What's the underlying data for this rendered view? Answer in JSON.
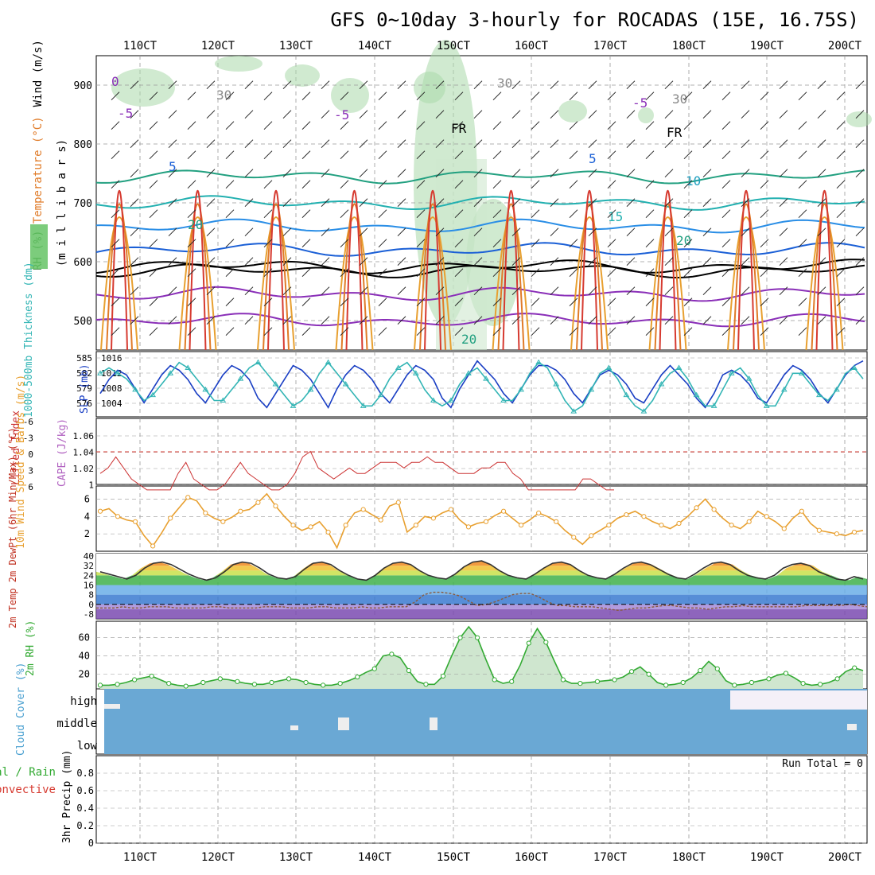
{
  "title": "GFS 0~10day 3-hourly for ROCADAS (15E, 16.75S)",
  "chart_data": {
    "type": "line",
    "x_ticks": [
      "110CT",
      "120CT",
      "130CT",
      "140CT",
      "150CT",
      "160CT",
      "170CT",
      "180CT",
      "190CT",
      "200CT"
    ],
    "panels": [
      {
        "id": "upper-air",
        "ylabel_parts": [
          "RH (%)",
          "Temperature (°C)",
          "Wind (m/s)"
        ],
        "ylabel2": "(m i l l i b a r s)",
        "ylim": [
          950,
          450
        ],
        "yticks": [
          500,
          600,
          700,
          800,
          900
        ],
        "contour_labels": [
          "0",
          "-5",
          "-5",
          "-5",
          "FR",
          "FR",
          "5",
          "5",
          "10",
          "15",
          "20",
          "20",
          "20",
          "30",
          "30",
          "30"
        ]
      },
      {
        "id": "slp-thickness",
        "ylabel_left": "1000-500mb Thickness (dm)",
        "ylabel_right": "SLP (mb)",
        "yticks_left": [
          585,
          582,
          579,
          576
        ],
        "yticks_right": [
          1016,
          1012,
          1008,
          1004
        ],
        "series": [
          {
            "name": "SLP (mb)",
            "color": "#1a3fc4",
            "values": [
              1008,
              1011,
              1013,
              1012,
              1009,
              1006,
              1009,
              1012,
              1014,
              1013,
              1011,
              1008,
              1006,
              1009,
              1012,
              1014,
              1013,
              1011,
              1007,
              1005,
              1008,
              1011,
              1014,
              1013,
              1011,
              1008,
              1005,
              1009,
              1012,
              1014,
              1013,
              1011,
              1008,
              1006,
              1009,
              1012,
              1014,
              1013,
              1011,
              1007,
              1005,
              1009,
              1012,
              1015,
              1013,
              1011,
              1008,
              1006,
              1009,
              1012,
              1014,
              1014,
              1013,
              1011,
              1008,
              1006,
              1009,
              1012,
              1013,
              1012,
              1010,
              1007,
              1006,
              1009,
              1012,
              1014,
              1012,
              1010,
              1007,
              1005,
              1008,
              1012,
              1013,
              1012,
              1010,
              1007,
              1006,
              1009,
              1012,
              1014,
              1013,
              1011,
              1008,
              1006,
              1009,
              1012,
              1014,
              1015
            ]
          },
          {
            "name": "1000-500mb Thickness (dm)",
            "color": "#33b5b5",
            "values": [
              582,
              583,
              582,
              581,
              579,
              577,
              578,
              580,
              582,
              584,
              583,
              581,
              579,
              577,
              577,
              579,
              581,
              583,
              584,
              582,
              580,
              578,
              576,
              577,
              579,
              582,
              584,
              582,
              580,
              578,
              576,
              576,
              578,
              581,
              583,
              584,
              582,
              579,
              577,
              576,
              577,
              580,
              582,
              583,
              581,
              579,
              577,
              577,
              579,
              582,
              584,
              583,
              580,
              577,
              575,
              576,
              579,
              582,
              583,
              581,
              578,
              576,
              575,
              577,
              580,
              582,
              583,
              581,
              578,
              576,
              576,
              579,
              582,
              583,
              581,
              578,
              576,
              576,
              579,
              582,
              582,
              580,
              578,
              577,
              579,
              582,
              583,
              581
            ]
          }
        ]
      },
      {
        "id": "lifted-cape",
        "ylabel_left": "Lifted Index",
        "ylabel_right": "CAPE (J/kg)",
        "yticks_left": [
          "-6",
          "-3",
          "0",
          "3",
          "6"
        ],
        "yticks_right": [
          "1.06",
          "1.04",
          "1.02",
          "1"
        ],
        "series": [
          {
            "name": "Lifted Index",
            "color": "#cc3333",
            "values": [
              4,
              3,
              1,
              3,
              5,
              6,
              7,
              7,
              7,
              7,
              4,
              2,
              5,
              6,
              7,
              7,
              6,
              4,
              2,
              4,
              5,
              6,
              7,
              7,
              6,
              4,
              1,
              0,
              3,
              4,
              5,
              4,
              3,
              4,
              4,
              3,
              2,
              2,
              2,
              3,
              2,
              2,
              1,
              2,
              2,
              3,
              4,
              4,
              4,
              3,
              3,
              2,
              2,
              4,
              5,
              7,
              7,
              7,
              7,
              7,
              7,
              7,
              5,
              5,
              6,
              7,
              7
            ]
          }
        ]
      },
      {
        "id": "wind10m",
        "ylabel": "10m Wind Speed & Barbs (m/s)",
        "yticks": [
          2,
          4,
          6
        ],
        "series": [
          {
            "name": "10m Wind Speed",
            "color": "#e8a030",
            "values": [
              4.6,
              4.9,
              4.0,
              3.6,
              3.4,
              1.8,
              0.6,
              2.1,
              3.8,
              5.0,
              6.2,
              5.8,
              4.4,
              3.8,
              3.4,
              3.9,
              4.6,
              4.8,
              5.6,
              6.6,
              5.2,
              4.0,
              3.0,
              2.4,
              2.8,
              3.4,
              2.2,
              0.4,
              3.0,
              4.4,
              4.8,
              4.2,
              3.6,
              5.2,
              5.6,
              2.2,
              3.0,
              4.0,
              3.8,
              4.4,
              4.8,
              3.6,
              2.8,
              3.2,
              3.4,
              4.1,
              4.6,
              3.8,
              3.0,
              3.6,
              4.4,
              4.0,
              3.4,
              2.4,
              1.6,
              0.8,
              1.8,
              2.4,
              3.0,
              3.8,
              4.2,
              4.6,
              4.0,
              3.4,
              3.0,
              2.6,
              3.2,
              4.0,
              5.0,
              6.0,
              4.8,
              3.8,
              3.0,
              2.6,
              3.4,
              4.6,
              4.0,
              3.4,
              2.6,
              3.8,
              4.6,
              3.2,
              2.4,
              2.2,
              2.0,
              1.8,
              2.2,
              2.4
            ]
          }
        ]
      },
      {
        "id": "temp2m",
        "ylabel": "2m Temp 2m DewPt (6hr Min/Max) (°C)",
        "yticks": [
          "40",
          "32",
          "24",
          "16",
          "8",
          "0",
          "-8"
        ],
        "series": [
          {
            "name": "2m Temp",
            "color": "#333333",
            "values": [
              27,
              25,
              23,
              21,
              24,
              30,
              34,
              35,
              33,
              29,
              25,
              22,
              20,
              22,
              27,
              33,
              35,
              34,
              30,
              25,
              22,
              21,
              23,
              29,
              34,
              35,
              33,
              28,
              24,
              21,
              20,
              24,
              30,
              34,
              35,
              33,
              28,
              24,
              22,
              21,
              25,
              31,
              35,
              36,
              33,
              28,
              24,
              22,
              21,
              25,
              30,
              34,
              35,
              33,
              28,
              24,
              22,
              21,
              25,
              30,
              34,
              35,
              33,
              29,
              25,
              22,
              21,
              25,
              30,
              34,
              35,
              33,
              28,
              24,
              22,
              21,
              24,
              30,
              33,
              34,
              32,
              27,
              24,
              21,
              20,
              23,
              21
            ]
          },
          {
            "name": "2m DewPt",
            "color": "#8a5a3c",
            "values": [
              -3,
              -3,
              -3,
              -2,
              -3,
              -3,
              -2,
              -2,
              -2,
              -3,
              -3,
              -3,
              -3,
              -2,
              -2,
              -3,
              -3,
              -3,
              -3,
              -2,
              -2,
              -2,
              -3,
              -3,
              -3,
              -2,
              -2,
              -3,
              -3,
              -3,
              -2,
              -3,
              -3,
              -2,
              -2,
              -2,
              2,
              8,
              10,
              10,
              9,
              7,
              3,
              -1,
              0,
              2,
              5,
              8,
              9,
              9,
              6,
              2,
              -1,
              -1,
              -2,
              -2,
              -2,
              -3,
              -4,
              -5,
              -4,
              -3,
              -3,
              -2,
              -1,
              -1,
              -2,
              -3,
              -3,
              -4,
              -3,
              -2,
              -2,
              -1,
              -2,
              -2,
              -2,
              -2,
              -2,
              -2,
              -1,
              -1,
              -1,
              -1,
              -1,
              0,
              -1,
              -2
            ]
          }
        ]
      },
      {
        "id": "rh2m",
        "ylabel": "2m RH (%)",
        "yticks": [
          20,
          40,
          60
        ],
        "series": [
          {
            "name": "2m RH",
            "color": "#33aa33",
            "values": [
              8,
              8,
              9,
              11,
              14,
              16,
              18,
              14,
              10,
              8,
              7,
              8,
              11,
              13,
              15,
              14,
              12,
              10,
              9,
              9,
              11,
              13,
              15,
              14,
              11,
              9,
              8,
              8,
              10,
              13,
              17,
              22,
              26,
              40,
              42,
              38,
              24,
              12,
              9,
              9,
              18,
              40,
              60,
              72,
              60,
              36,
              14,
              10,
              12,
              30,
              54,
              70,
              55,
              34,
              14,
              10,
              10,
              11,
              12,
              13,
              14,
              17,
              23,
              28,
              20,
              11,
              8,
              9,
              11,
              16,
              24,
              34,
              26,
              13,
              8,
              9,
              11,
              13,
              15,
              19,
              21,
              16,
              10,
              8,
              9,
              11,
              15,
              23,
              27,
              24
            ]
          }
        ]
      },
      {
        "id": "cloud",
        "ylabel": "Cloud Cover (%)",
        "yticks": [
          "high",
          "middle",
          "low"
        ]
      },
      {
        "id": "precip",
        "ylabel": "3hr Precip (mm)",
        "ylabel_left": [
          "Total / Rain",
          "Convective"
        ],
        "yticks": [
          "0.8",
          "0.6",
          "0.4",
          "0.2",
          "0"
        ],
        "run_total": "Run Total = 0",
        "ylim": [
          0,
          1
        ]
      }
    ]
  }
}
